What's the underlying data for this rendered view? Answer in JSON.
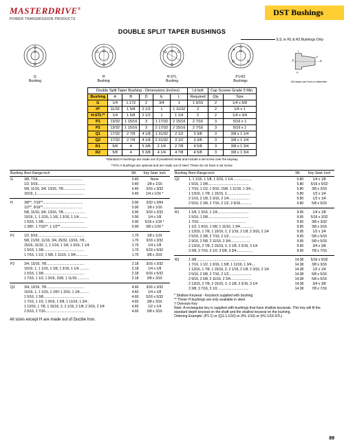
{
  "brand": {
    "name": "MASTERDRIVE",
    "reg": "®",
    "sub": "POWER TRANSMISSION PRODUCTS"
  },
  "tab": "DST Bushings",
  "title": "DOUBLE SPLIT TAPER BUSHINGS",
  "ss_note": "S.S. in R1 & R2 Bushings Only",
  "taper_note": "3/4 taper per foot on diameter",
  "figs": [
    "G\nBushing",
    "H\nBushing",
    "H-STL\nBushing",
    "P1-R2\nBushings",
    ""
  ],
  "dim_headers_top": [
    "Double Split Taper Bushing - Dimensions (inches)",
    "I.d bolt",
    "Cap Screws Grade 5 Min."
  ],
  "dim_headers": [
    "Bushing",
    "A",
    "B",
    "D",
    "E",
    "L",
    "Required",
    "Qty",
    "Size"
  ],
  "dim_rows": [
    [
      "G",
      "1/4",
      "1.172",
      "2",
      "3/4",
      "1",
      "1 9/16",
      "2",
      "1/4 x 5/8"
    ],
    [
      "H*",
      "11/32",
      "1 5/8",
      "2 1/2",
      "1",
      "1 11/32",
      "2",
      "2",
      "1/4 x 1"
    ],
    [
      "H-STL**",
      "1/4",
      "1 5/8",
      "2 1/2",
      "1",
      "1 1/4",
      "2",
      "2",
      "1/4 x 3/4"
    ],
    [
      "P1",
      "13/32",
      "1 15/16",
      "3",
      "1 17/32",
      "2 15/16",
      "2 7/16",
      "3",
      "5/16 x 1"
    ],
    [
      "P2",
      "13/32",
      "1 15/16",
      "3",
      "2 17/32",
      "2 15/16",
      "2 7/16",
      "3",
      "5/16 x 1"
    ],
    [
      "Q1",
      "17/32",
      "2 7/8",
      "4 1/8",
      "1 31/32",
      "2 1/2",
      "3 3/8",
      "3",
      "3/8 x 1 1/4"
    ],
    [
      "Q2",
      "17/32",
      "2 7/8",
      "4 1/8",
      "2 31/32",
      "3 1/2",
      "3 3/8",
      "3",
      "3/8 x 1 1/4"
    ],
    [
      "R1",
      "5/8",
      "4",
      "5 3/8",
      "2 1/4",
      "2 7/8",
      "4 5/8",
      "3",
      "3/8 x 1 3/4"
    ],
    [
      "R2",
      "5/8",
      "4",
      "5 3/8",
      "4 1/4",
      "4 7/8",
      "4 5/8",
      "3",
      "3/8 x 1 3/4"
    ]
  ],
  "dim_foot1": "*Standard H bushings are made out of powdered metal and include a set screw over the keyway.",
  "dim_foot2": "**STL H bushings are optional and are made out of steel. These do not have a set screw.",
  "bore_hdr": [
    "Bushing",
    "Bore Range-inch",
    "Wt.",
    "Key Seat- inch"
  ],
  "left_groups": [
    {
      "rows": [
        [
          "G",
          "3/8, 7/16...............................................",
          "0.40",
          "None"
        ],
        [
          "",
          "1/2, 9/16..................................................",
          "0.40",
          "1/8 x 1/16"
        ],
        [
          "",
          "5/8, 11/16, 3/4, 13/16, 7/8.......................",
          "0.40",
          "3/16 x 3/32"
        ],
        [
          "",
          "15/16, 1..................................................",
          "0.40",
          "1/4 x 1/16 *"
        ]
      ]
    },
    {
      "rows": [
        [
          "H",
          "3/8**, 7/16**..........................................",
          "0.90",
          "3/32 x 3/64"
        ],
        [
          "",
          "1/2**, 9/16**..........................................",
          "0.90",
          "1/8 x 1/16"
        ],
        [
          "",
          "5/8, 11/16, 3/4, 13/16, 7/8.......................",
          "0.90",
          "3/16 x 3/32"
        ],
        [
          "",
          "15/16, 1, 1 1/16, 1 1/8, 1 3/16, 1 1/4.........",
          "0.90",
          "1/4 x 1/8"
        ],
        [
          "",
          "1 5/16, 1 3/8...........................................",
          "0.90",
          "5/16 x 1/16 *"
        ],
        [
          "",
          "1 3/8†, 1 7/16**, 1 1/2**............................",
          "0.90",
          "3/8 x 1/16 *"
        ]
      ]
    },
    {
      "rows": [
        [
          "P1",
          "1/2, 9/16.................................................",
          "1.70",
          "1/8 x 1/16"
        ],
        [
          "",
          "5/8, 21/32, 11/16, 3/4, 25/32, 13/16, 7/8...",
          "1.70",
          "3/16 x 3/32"
        ],
        [
          "",
          "15/16, 31/32, 1, 1 1/16, 1 1/8, 1 3/16, 1 1/4",
          "1.70",
          "1/4 x 1/8"
        ],
        [
          "",
          "1 5/16, 1 3/8...........................................",
          "1.70",
          "5/16 x 5/32"
        ],
        [
          "",
          "1 7/16, 1 1/2, 1 5/8, 1 11/16, 1 3/4.............",
          "1.70",
          "3/8 x 3/16"
        ]
      ]
    },
    {
      "rows": [
        [
          "P2",
          "3/4, 13/16, 7/8........................................",
          "2.18",
          "3/16 x 3/32"
        ],
        [
          "",
          "15/16, 1, 1 1/16, 1 1/8, 1 3/16, 1 1/4...........",
          "2.18",
          "1/4 x 1/8"
        ],
        [
          "",
          "1 5/16, 1 3/8...........................................",
          "2.18",
          "5/16 x 5/32"
        ],
        [
          "",
          "1 7/16, 1 1/2, 1 9/16, 15/8, 1 11/16.............",
          "2.18",
          "3/8 x 3/16"
        ]
      ]
    },
    {
      "rows": [
        [
          "Q1",
          "3/4, 13/16, 7/8.......................................",
          "4.60",
          "3/16 x 3/32"
        ],
        [
          "",
          "15/16, 1, 1 1/16, 1 1/8† 1 3/16, 1 1/4..........",
          "4.60",
          "1/4 x 1/8"
        ],
        [
          "",
          "1 5/16, 1 3/8...........................................",
          "4.60",
          "5/16 x 5/32"
        ],
        [
          "",
          "1 7/16, 1 1/2, 1 9/16, 1 5/8, 1 11/16, 1 3/4..",
          "4.60",
          "3/8 x 3/16"
        ],
        [
          "",
          "1 13/16, 1 7/8, 1 15/16, 2, 2 1/16, 2 1/8, 2 3/16, 2 1/4",
          "4.60",
          "1/2 x 1/4"
        ],
        [
          "",
          "2 5/16, 2 7/16.........................................",
          "4.60",
          "5/8 x 3/16"
        ]
      ]
    }
  ],
  "right_groups": [
    {
      "rows": [
        [
          "Q2",
          "1, 1 1/16, 1 1/8, 1 3/16, 1 1/4....................",
          "5.80",
          "1/4 x 1/8"
        ],
        [
          "",
          "1 5/16, 1 3/8...........................................",
          "5.80",
          "5/16 x 5/32"
        ],
        [
          "",
          "1 7/16, 1 1/2, 1 9/16, 15/8, 1 11/16, 1 3/4....",
          "5.80",
          "3/8 x 3/16"
        ],
        [
          "",
          "1 13/16, 1 7/8, 1 15/16, 2.........................",
          "5.80",
          "1/2 x 1/4"
        ],
        [
          "",
          "2 1/16, 2 1/8, 2 3/16, 2 1/4......................",
          "5.80",
          "1/2 x 1/4"
        ],
        [
          "",
          "2 5/16, 2 3/8, 2 7/16, 2 1/2, 2 9/16............",
          "5.80",
          "5/8 x 5/16"
        ]
      ]
    },
    {
      "rows": [
        [
          "R1",
          "1 1/8, 1 3/16, 1 1/4.................................",
          "9.95",
          "1/4 x 1/8"
        ],
        [
          "",
          "1 5/16, 1 3/8...........................................",
          "9.95",
          "5/16 x 3/32"
        ],
        [
          "",
          "1 7/16..................................................",
          "9.95",
          "3/8 x 3/32"
        ],
        [
          "",
          "1 1/2, 1 9/16, 1 5/8, 1 11/16, 1 3/4..............",
          "9.95",
          "3/8 x 3/16"
        ],
        [
          "",
          "1 13/16, 1 7/8, 1 15/16, 2, 2 1/16, 2 1/8, 2 3/16, 2 1/4",
          "9.95",
          "1/2 x 1/4"
        ],
        [
          "",
          "2 5/16, 2 3/8, 2 7/16, 2 1/2.......................",
          "9.95",
          "5/8 x 5/16"
        ],
        [
          "",
          "2 9/16, 2 5/8, 2 11/16, 2 3/4.....................",
          "9.95",
          "5/8 x 5/16"
        ],
        [
          "",
          "2 13/16, 2 7/8, 2 15/16, 3, 3 1/8, 3 3/16, 3 1/4",
          "9.95",
          "3/4 x 3/8"
        ],
        [
          "",
          "3 3/8, 3 7/16, 3 1/2, 3 5/8, 3 3/4.................",
          "9.95",
          "7/8 x 7/16"
        ]
      ]
    },
    {
      "rows": [
        [
          "R2",
          "1 3/8....................................................",
          "14.38",
          "5/16 x 5/32"
        ],
        [
          "",
          "1 7/16, 1 1/2, 1 9/16, 1 5/8, 1 11/16, 1 3/4....",
          "14.38",
          "3/8 x 3/16"
        ],
        [
          "",
          "1 13/16, 1 7/8, 1 15/16, 2, 2 1/16, 2 1/8, 2 3/16, 2 1/4",
          "14.38",
          "1/2 x 1/4"
        ],
        [
          "",
          "2 5/16, 2 3/8, 2 7/16, 2 1/2........................",
          "14.38",
          "5/8 x 5/16"
        ],
        [
          "",
          "2 9/16, 2 5/8, 2 11/16, 2 3/4......................",
          "14.38",
          "5/8 x 5/16"
        ],
        [
          "",
          "2 13/16, 2 7/8, 2 15/16, 3, 3 1/8, 3 3/16, 3 1/4",
          "14.38",
          "3/4 x 3/8"
        ],
        [
          "",
          "3 3/8, 3 7/16, 3 1/2.................................",
          "14.38",
          "7/8 x 7/16"
        ]
      ]
    }
  ],
  "notes": [
    "*   Shallow Keyseat - Keystock supplied with bushing",
    "** These H bushings are only available in steel.",
    "†  Oversize Key",
    "Note:  A rectangular key is supplied with bushings that have shallow keyseats.  This key will fit the standard depth keyseat on the shaft and the shallow keyseat on the bushing.",
    "Ordering Example: (P1-1) or (Q1-1.1/16) or (H1-1/16) or (H1-1/16-STL)"
  ],
  "all_sizes": "All sizes except H are made out of Ductile Iron.",
  "page_num": "89"
}
